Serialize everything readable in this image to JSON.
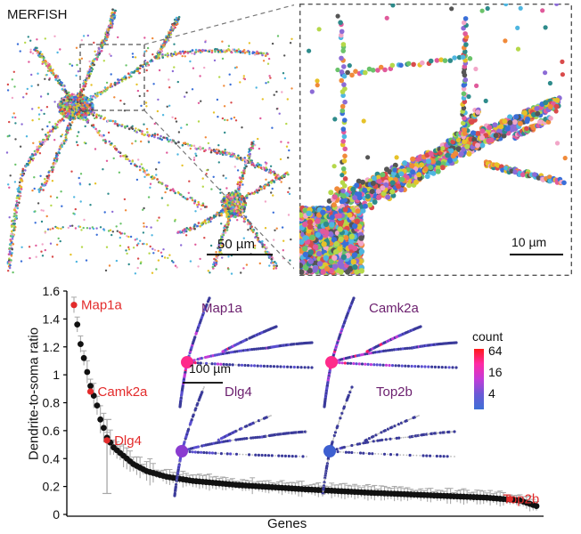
{
  "panel": {
    "technique_label": "MERFISH",
    "overview_scalebar": "50 µm",
    "zoom_scalebar": "10 µm",
    "map_scalebar": "100 µm"
  },
  "chart_data": {
    "type": "scatter",
    "xlabel": "Genes",
    "ylabel": "Dendrite-to-soma ratio",
    "ylim": [
      0,
      1.6
    ],
    "yticks": [
      "0",
      "0.2",
      "0.4",
      "0.6",
      "0.8",
      "1",
      "1.2",
      "1.4",
      "1.6"
    ],
    "grid": false,
    "approx_gene_count": 140,
    "sorted_ratio_profile": [
      [
        0,
        1.5
      ],
      [
        1,
        1.36
      ],
      [
        2,
        1.22
      ],
      [
        3,
        1.12
      ],
      [
        4,
        1.02
      ],
      [
        5,
        0.92
      ],
      [
        6,
        0.85
      ],
      [
        7,
        0.78
      ],
      [
        8,
        0.68
      ],
      [
        9,
        0.62
      ],
      [
        10,
        0.55
      ],
      [
        12,
        0.48
      ],
      [
        15,
        0.42
      ],
      [
        18,
        0.36
      ],
      [
        22,
        0.31
      ],
      [
        28,
        0.27
      ],
      [
        36,
        0.24
      ],
      [
        50,
        0.21
      ],
      [
        70,
        0.18
      ],
      [
        90,
        0.155
      ],
      [
        110,
        0.135
      ],
      [
        125,
        0.12
      ],
      [
        135,
        0.1
      ],
      [
        140,
        0.06
      ]
    ],
    "highlighted_genes": [
      {
        "name": "Map1a",
        "rank": 0,
        "ratio": 1.5
      },
      {
        "name": "Camk2a",
        "rank": 5,
        "ratio": 0.88
      },
      {
        "name": "Dlg4",
        "rank": 10,
        "ratio": 0.53
      },
      {
        "name": "Top2b",
        "rank": 132,
        "ratio": 0.11
      }
    ],
    "highlight_color": "#e32b2b",
    "point_color": "#111111",
    "errorbar_color": "#a8a8a8"
  },
  "maps": {
    "titles": [
      "Map1a",
      "Camk2a",
      "Dlg4",
      "Top2b"
    ],
    "title_color": "#6b1f6e",
    "colorbar": {
      "title": "count",
      "ticks": [
        "64",
        "16",
        "4"
      ],
      "scale": "log",
      "colors": [
        "#ff1a1a",
        "#ff2aa6",
        "#c23cd8",
        "#6a5ad6",
        "#3d6fd6"
      ]
    }
  }
}
